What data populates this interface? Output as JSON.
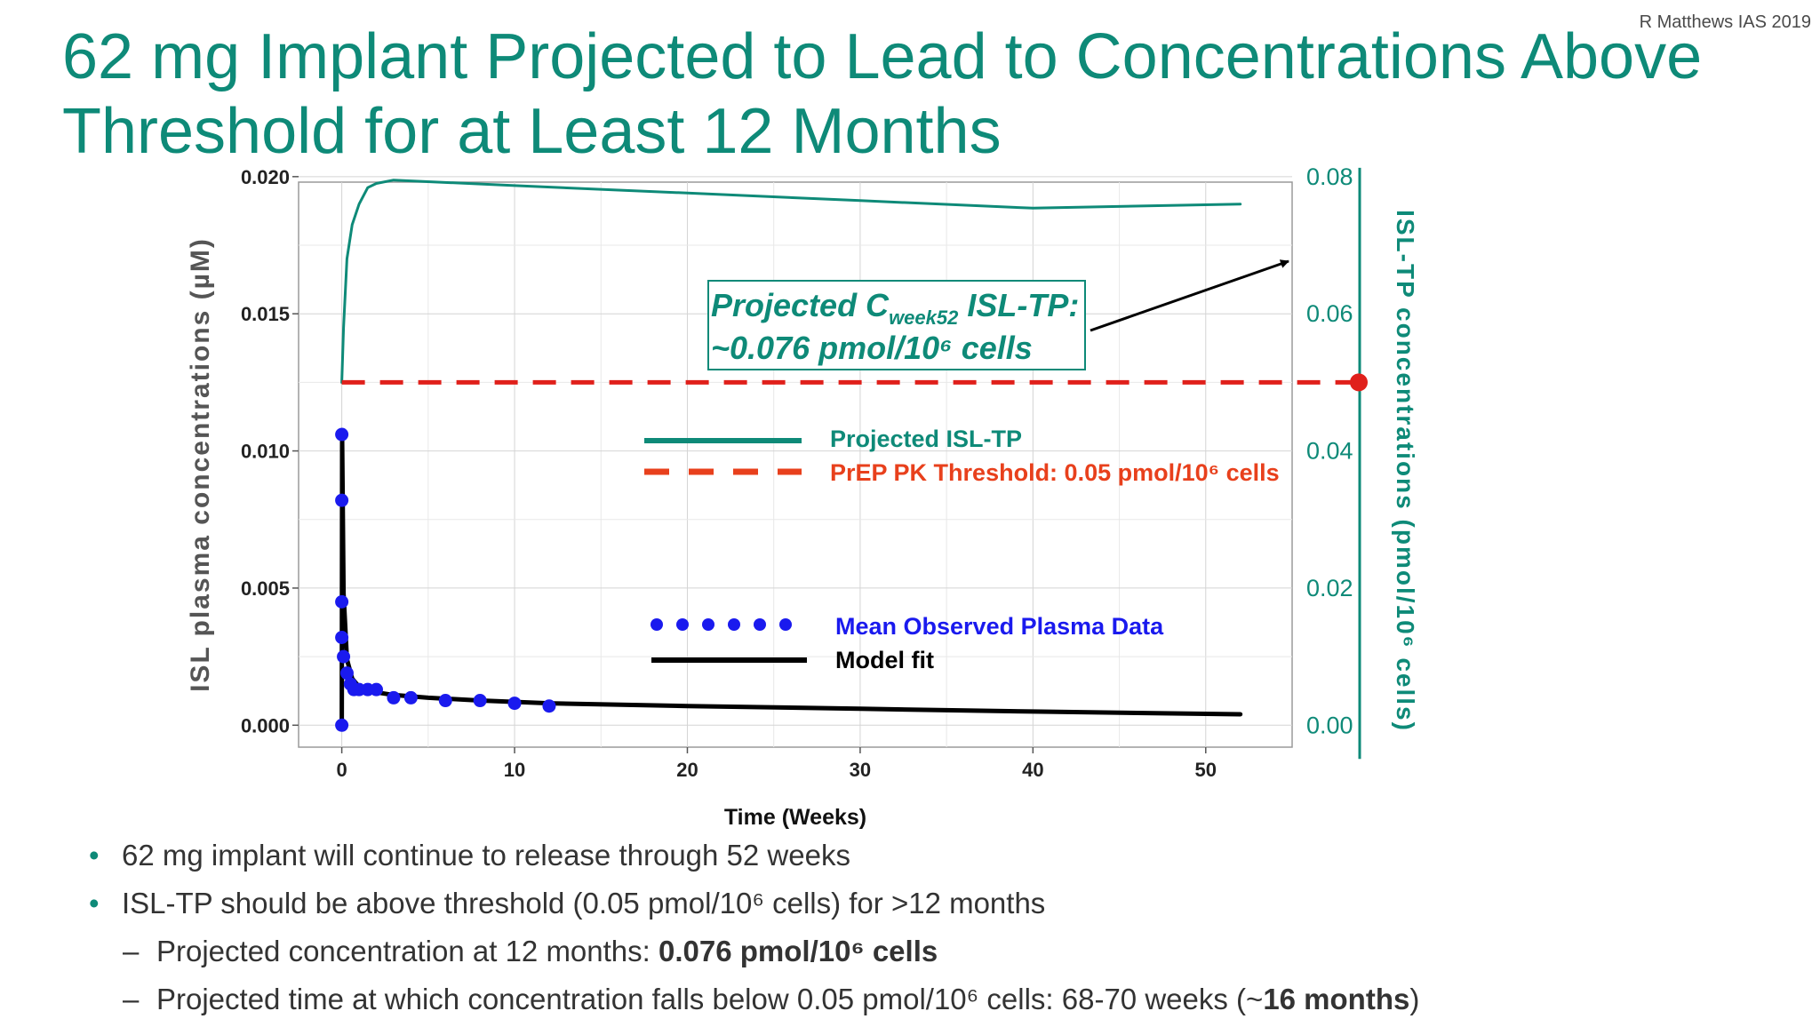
{
  "credit": "R Matthews IAS 2019",
  "title": {
    "line1": "62 mg Implant Projected to Lead to Concentrations Above",
    "line2": "Threshold for at Least 12 Months"
  },
  "colors": {
    "teal": "#0e8a78",
    "red": "#e0201b",
    "blue": "#1a1aee",
    "black": "#000000",
    "legend_orange": "#e8401c"
  },
  "chart_data": {
    "type": "line",
    "xlabel": "Time (Weeks)",
    "xlim": [
      -2.5,
      55
    ],
    "x_ticks": [
      0,
      10,
      20,
      30,
      40,
      50
    ],
    "ylabel_left": "ISL plasma concentrations (µM)",
    "ylim_left": [
      -0.0008,
      0.0198
    ],
    "y_ticks_left": [
      "0.000",
      "0.005",
      "0.010",
      "0.015",
      "0.020"
    ],
    "ylabel_right": "ISL-TP concentrations (pmol/10⁶ cells)",
    "ylim_right": [
      -0.0032,
      0.0792
    ],
    "y_ticks_right": [
      "0.00",
      "0.02",
      "0.04",
      "0.06",
      "0.08"
    ],
    "series": [
      {
        "name": "Mean Observed Plasma Data",
        "axis": "left",
        "style": "points",
        "x": [
          0,
          0,
          0,
          0,
          0,
          0.1,
          0.3,
          0.5,
          0.7,
          1,
          1.5,
          2,
          3,
          4,
          6,
          8,
          10,
          12
        ],
        "y": [
          0.0,
          0.0106,
          0.0082,
          0.0045,
          0.0032,
          0.0025,
          0.0019,
          0.0015,
          0.0013,
          0.0013,
          0.0013,
          0.0013,
          0.001,
          0.001,
          0.0009,
          0.0009,
          0.0008,
          0.0007
        ]
      },
      {
        "name": "Model fit",
        "axis": "left",
        "style": "line",
        "x": [
          0,
          0.02,
          0.1,
          0.3,
          0.6,
          1,
          2,
          3,
          5,
          8,
          12,
          20,
          30,
          40,
          52
        ],
        "y": [
          0.0,
          0.0105,
          0.0048,
          0.0024,
          0.0017,
          0.0014,
          0.0012,
          0.0011,
          0.001,
          0.0009,
          0.0008,
          0.0007,
          0.0006,
          0.0005,
          0.0004
        ]
      },
      {
        "name": "Projected ISL-TP",
        "axis": "right",
        "style": "line",
        "x": [
          0,
          0.1,
          0.3,
          0.6,
          1,
          1.5,
          2,
          3,
          10,
          20,
          30,
          40,
          52
        ],
        "y": [
          0.05,
          0.058,
          0.068,
          0.073,
          0.076,
          0.0784,
          0.079,
          0.0795,
          0.0787,
          0.0776,
          0.0765,
          0.0754,
          0.076
        ]
      },
      {
        "name": "PrEP PK Threshold: 0.05 pmol/10⁶ cells",
        "axis": "right",
        "style": "dashed",
        "x": [
          0,
          55
        ],
        "y": [
          0.05,
          0.05
        ]
      }
    ],
    "legend": {
      "projected": "Projected ISL-TP",
      "threshold": "PrEP PK Threshold: 0.05 pmol/10⁶ cells",
      "observed": "Mean Observed Plasma Data",
      "model": "Model fit"
    },
    "annotation": {
      "line1_a": "Projected C",
      "line1_sub": "week52",
      "line1_b": " ISL-TP:",
      "line2": "~0.076 pmol/10⁶ cells"
    }
  },
  "bullets": {
    "b1": "62 mg implant will continue to release through 52 weeks",
    "b2": "ISL-TP should be above threshold (0.05 pmol/10⁶ cells) for >12 months",
    "b3_prefix": "Projected concentration at 12 months: ",
    "b3_bold": "0.076 pmol/10⁶ cells",
    "b4_prefix": "Projected time at which concentration falls below 0.05 pmol/10⁶ cells: 68-70 weeks (~",
    "b4_bold": "16 months",
    "b4_suffix": ")"
  }
}
